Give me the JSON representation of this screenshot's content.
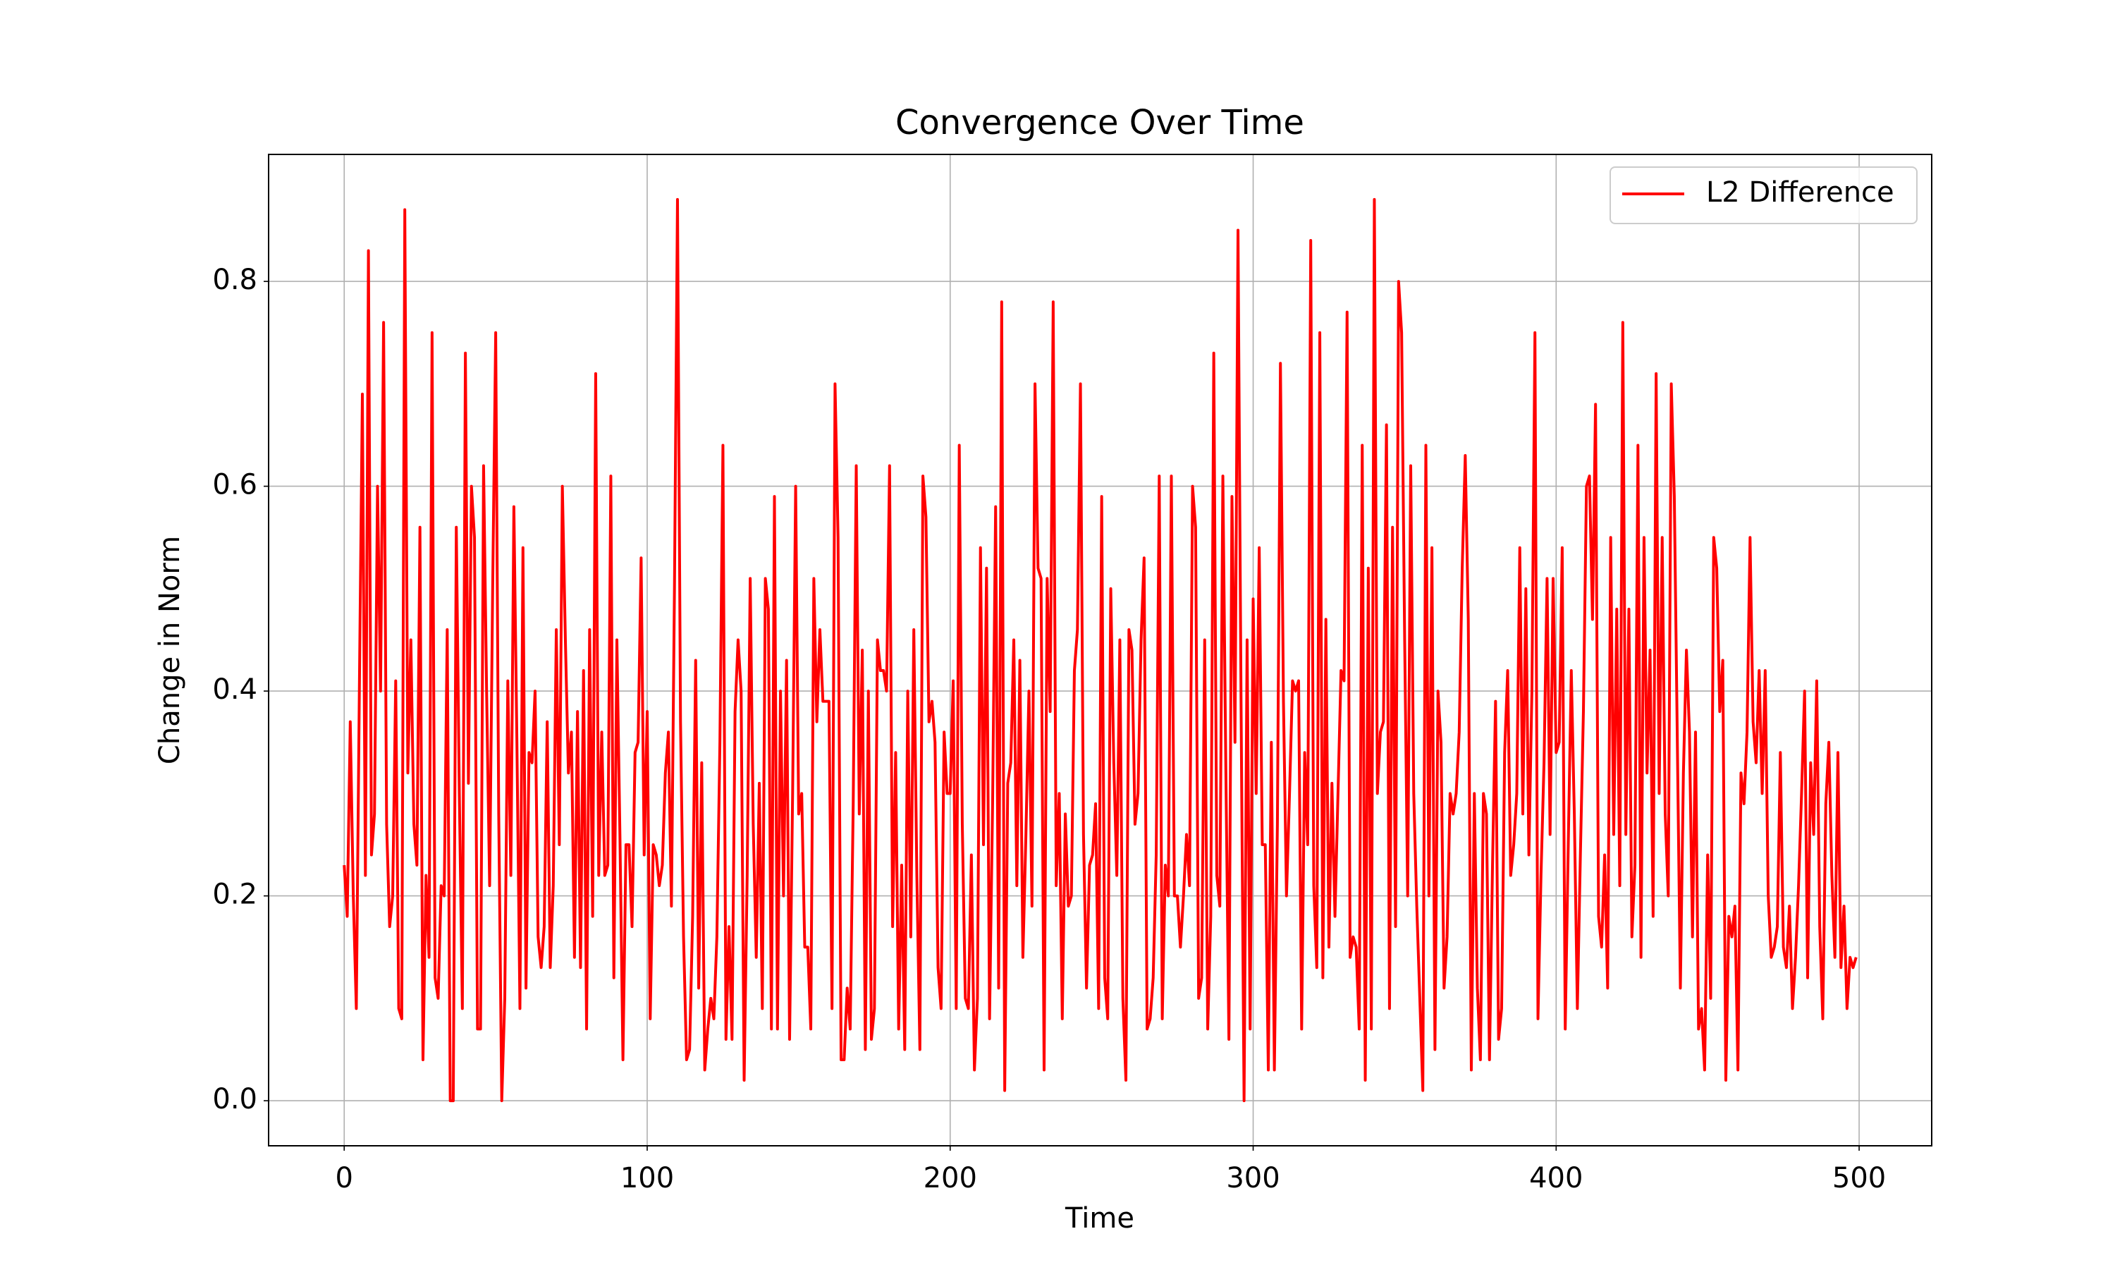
{
  "chart_data": {
    "type": "line",
    "title": "Convergence Over Time",
    "x_label": "Time",
    "y_label": "Change in Norm",
    "x": [
      0,
      1,
      2,
      3,
      4,
      5,
      6,
      7,
      8,
      9,
      10,
      11,
      12,
      13,
      14,
      15,
      16,
      17,
      18,
      19,
      20,
      21,
      22,
      23,
      24,
      25,
      26,
      27,
      28,
      29,
      30,
      31,
      32,
      33,
      34,
      35,
      36,
      37,
      38,
      39,
      40,
      41,
      42,
      43,
      44,
      45,
      46,
      47,
      48,
      49,
      50,
      51,
      52,
      53,
      54,
      55,
      56,
      57,
      58,
      59,
      60,
      61,
      62,
      63,
      64,
      65,
      66,
      67,
      68,
      69,
      70,
      71,
      72,
      73,
      74,
      75,
      76,
      77,
      78,
      79,
      80,
      81,
      82,
      83,
      84,
      85,
      86,
      87,
      88,
      89,
      90,
      91,
      92,
      93,
      94,
      95,
      96,
      97,
      98,
      99,
      100,
      101,
      102,
      103,
      104,
      105,
      106,
      107,
      108,
      109,
      110,
      111,
      112,
      113,
      114,
      115,
      116,
      117,
      118,
      119,
      120,
      121,
      122,
      123,
      124,
      125,
      126,
      127,
      128,
      129,
      130,
      131,
      132,
      133,
      134,
      135,
      136,
      137,
      138,
      139,
      140,
      141,
      142,
      143,
      144,
      145,
      146,
      147,
      148,
      149,
      150,
      151,
      152,
      153,
      154,
      155,
      156,
      157,
      158,
      159,
      160,
      161,
      162,
      163,
      164,
      165,
      166,
      167,
      168,
      169,
      170,
      171,
      172,
      173,
      174,
      175,
      176,
      177,
      178,
      179,
      180,
      181,
      182,
      183,
      184,
      185,
      186,
      187,
      188,
      189,
      190,
      191,
      192,
      193,
      194,
      195,
      196,
      197,
      198,
      199,
      200,
      201,
      202,
      203,
      204,
      205,
      206,
      207,
      208,
      209,
      210,
      211,
      212,
      213,
      214,
      215,
      216,
      217,
      218,
      219,
      220,
      221,
      222,
      223,
      224,
      225,
      226,
      227,
      228,
      229,
      230,
      231,
      232,
      233,
      234,
      235,
      236,
      237,
      238,
      239,
      240,
      241,
      242,
      243,
      244,
      245,
      246,
      247,
      248,
      249,
      250,
      251,
      252,
      253,
      254,
      255,
      256,
      257,
      258,
      259,
      260,
      261,
      262,
      263,
      264,
      265,
      266,
      267,
      268,
      269,
      270,
      271,
      272,
      273,
      274,
      275,
      276,
      277,
      278,
      279,
      280,
      281,
      282,
      283,
      284,
      285,
      286,
      287,
      288,
      289,
      290,
      291,
      292,
      293,
      294,
      295,
      296,
      297,
      298,
      299,
      300,
      301,
      302,
      303,
      304,
      305,
      306,
      307,
      308,
      309,
      310,
      311,
      312,
      313,
      314,
      315,
      316,
      317,
      318,
      319,
      320,
      321,
      322,
      323,
      324,
      325,
      326,
      327,
      328,
      329,
      330,
      331,
      332,
      333,
      334,
      335,
      336,
      337,
      338,
      339,
      340,
      341,
      342,
      343,
      344,
      345,
      346,
      347,
      348,
      349,
      350,
      351,
      352,
      353,
      354,
      355,
      356,
      357,
      358,
      359,
      360,
      361,
      362,
      363,
      364,
      365,
      366,
      367,
      368,
      369,
      370,
      371,
      372,
      373,
      374,
      375,
      376,
      377,
      378,
      379,
      380,
      381,
      382,
      383,
      384,
      385,
      386,
      387,
      388,
      389,
      390,
      391,
      392,
      393,
      394,
      395,
      396,
      397,
      398,
      399,
      400,
      401,
      402,
      403,
      404,
      405,
      406,
      407,
      408,
      409,
      410,
      411,
      412,
      413,
      414,
      415,
      416,
      417,
      418,
      419,
      420,
      421,
      422,
      423,
      424,
      425,
      426,
      427,
      428,
      429,
      430,
      431,
      432,
      433,
      434,
      435,
      436,
      437,
      438,
      439,
      440,
      441,
      442,
      443,
      444,
      445,
      446,
      447,
      448,
      449,
      450,
      451,
      452,
      453,
      454,
      455,
      456,
      457,
      458,
      459,
      460,
      461,
      462,
      463,
      464,
      465,
      466,
      467,
      468,
      469,
      470,
      471,
      472,
      473,
      474,
      475,
      476,
      477,
      478,
      479,
      480,
      481,
      482,
      483,
      484,
      485,
      486,
      487,
      488,
      489,
      490,
      491,
      492,
      493,
      494,
      495,
      496,
      497,
      498,
      499
    ],
    "series": [
      {
        "name": "L2 Difference",
        "color": "#ff0000",
        "values": [
          0.23,
          0.18,
          0.37,
          0.2,
          0.09,
          0.4,
          0.69,
          0.22,
          0.83,
          0.24,
          0.28,
          0.6,
          0.4,
          0.76,
          0.27,
          0.17,
          0.2,
          0.41,
          0.09,
          0.08,
          0.87,
          0.32,
          0.45,
          0.27,
          0.23,
          0.56,
          0.04,
          0.22,
          0.14,
          0.75,
          0.12,
          0.1,
          0.21,
          0.2,
          0.46,
          0.0,
          0.0,
          0.56,
          0.3,
          0.09,
          0.73,
          0.31,
          0.6,
          0.55,
          0.07,
          0.07,
          0.62,
          0.4,
          0.21,
          0.5,
          0.75,
          0.28,
          0.0,
          0.1,
          0.41,
          0.22,
          0.58,
          0.35,
          0.09,
          0.54,
          0.11,
          0.34,
          0.33,
          0.4,
          0.16,
          0.13,
          0.17,
          0.37,
          0.13,
          0.21,
          0.46,
          0.25,
          0.6,
          0.45,
          0.32,
          0.36,
          0.14,
          0.38,
          0.13,
          0.42,
          0.07,
          0.46,
          0.18,
          0.71,
          0.22,
          0.36,
          0.22,
          0.23,
          0.61,
          0.12,
          0.45,
          0.26,
          0.04,
          0.25,
          0.25,
          0.17,
          0.34,
          0.35,
          0.53,
          0.24,
          0.38,
          0.08,
          0.25,
          0.24,
          0.21,
          0.23,
          0.32,
          0.36,
          0.19,
          0.5,
          0.88,
          0.37,
          0.16,
          0.04,
          0.05,
          0.18,
          0.43,
          0.11,
          0.33,
          0.03,
          0.07,
          0.1,
          0.08,
          0.16,
          0.35,
          0.64,
          0.06,
          0.17,
          0.06,
          0.38,
          0.45,
          0.4,
          0.02,
          0.22,
          0.51,
          0.27,
          0.14,
          0.31,
          0.09,
          0.51,
          0.48,
          0.07,
          0.59,
          0.07,
          0.4,
          0.2,
          0.43,
          0.06,
          0.3,
          0.6,
          0.28,
          0.3,
          0.15,
          0.15,
          0.07,
          0.51,
          0.37,
          0.46,
          0.39,
          0.39,
          0.39,
          0.09,
          0.7,
          0.55,
          0.04,
          0.04,
          0.11,
          0.07,
          0.29,
          0.62,
          0.28,
          0.44,
          0.05,
          0.4,
          0.06,
          0.09,
          0.45,
          0.42,
          0.42,
          0.4,
          0.62,
          0.17,
          0.34,
          0.07,
          0.23,
          0.05,
          0.4,
          0.16,
          0.46,
          0.22,
          0.05,
          0.61,
          0.57,
          0.37,
          0.39,
          0.35,
          0.13,
          0.09,
          0.36,
          0.3,
          0.3,
          0.41,
          0.09,
          0.64,
          0.27,
          0.1,
          0.09,
          0.24,
          0.03,
          0.1,
          0.54,
          0.25,
          0.52,
          0.08,
          0.29,
          0.58,
          0.11,
          0.78,
          0.01,
          0.31,
          0.33,
          0.45,
          0.21,
          0.43,
          0.14,
          0.26,
          0.4,
          0.19,
          0.7,
          0.52,
          0.51,
          0.03,
          0.51,
          0.38,
          0.78,
          0.21,
          0.3,
          0.08,
          0.28,
          0.19,
          0.2,
          0.42,
          0.46,
          0.7,
          0.26,
          0.11,
          0.23,
          0.24,
          0.29,
          0.09,
          0.59,
          0.12,
          0.08,
          0.5,
          0.33,
          0.22,
          0.45,
          0.1,
          0.02,
          0.46,
          0.44,
          0.27,
          0.3,
          0.45,
          0.53,
          0.07,
          0.08,
          0.12,
          0.24,
          0.61,
          0.08,
          0.23,
          0.2,
          0.61,
          0.2,
          0.2,
          0.15,
          0.2,
          0.26,
          0.21,
          0.6,
          0.56,
          0.1,
          0.12,
          0.45,
          0.07,
          0.18,
          0.73,
          0.22,
          0.19,
          0.61,
          0.32,
          0.06,
          0.59,
          0.35,
          0.85,
          0.39,
          0.0,
          0.45,
          0.07,
          0.49,
          0.3,
          0.54,
          0.25,
          0.25,
          0.03,
          0.35,
          0.03,
          0.27,
          0.72,
          0.39,
          0.2,
          0.3,
          0.41,
          0.4,
          0.41,
          0.07,
          0.34,
          0.25,
          0.84,
          0.21,
          0.13,
          0.75,
          0.12,
          0.47,
          0.15,
          0.31,
          0.18,
          0.3,
          0.42,
          0.41,
          0.77,
          0.14,
          0.16,
          0.15,
          0.07,
          0.64,
          0.02,
          0.52,
          0.07,
          0.88,
          0.3,
          0.36,
          0.37,
          0.66,
          0.09,
          0.56,
          0.17,
          0.8,
          0.75,
          0.45,
          0.2,
          0.62,
          0.3,
          0.19,
          0.1,
          0.01,
          0.64,
          0.2,
          0.54,
          0.05,
          0.4,
          0.35,
          0.11,
          0.16,
          0.3,
          0.28,
          0.3,
          0.36,
          0.52,
          0.63,
          0.47,
          0.03,
          0.3,
          0.11,
          0.04,
          0.3,
          0.28,
          0.04,
          0.23,
          0.39,
          0.06,
          0.09,
          0.34,
          0.42,
          0.22,
          0.25,
          0.3,
          0.54,
          0.28,
          0.5,
          0.24,
          0.4,
          0.75,
          0.08,
          0.22,
          0.33,
          0.51,
          0.26,
          0.51,
          0.34,
          0.35,
          0.54,
          0.07,
          0.25,
          0.42,
          0.28,
          0.09,
          0.24,
          0.38,
          0.6,
          0.61,
          0.47,
          0.68,
          0.18,
          0.15,
          0.24,
          0.11,
          0.55,
          0.26,
          0.48,
          0.21,
          0.76,
          0.26,
          0.48,
          0.16,
          0.23,
          0.64,
          0.14,
          0.55,
          0.32,
          0.44,
          0.18,
          0.71,
          0.3,
          0.55,
          0.28,
          0.2,
          0.7,
          0.59,
          0.35,
          0.11,
          0.32,
          0.44,
          0.36,
          0.16,
          0.36,
          0.07,
          0.09,
          0.03,
          0.24,
          0.1,
          0.55,
          0.52,
          0.38,
          0.43,
          0.02,
          0.18,
          0.16,
          0.19,
          0.03,
          0.32,
          0.29,
          0.36,
          0.55,
          0.37,
          0.33,
          0.42,
          0.3,
          0.42,
          0.2,
          0.14,
          0.15,
          0.17,
          0.34,
          0.15,
          0.13,
          0.19,
          0.09,
          0.14,
          0.21,
          0.3,
          0.4,
          0.12,
          0.33,
          0.26,
          0.41,
          0.17,
          0.08,
          0.29,
          0.35,
          0.22,
          0.14,
          0.34,
          0.13,
          0.19,
          0.09,
          0.14,
          0.13,
          0.14
        ]
      }
    ],
    "xlim": [
      -24.95,
      523.95
    ],
    "ylim": [
      -0.044,
      0.924
    ],
    "xticks": [
      0,
      100,
      200,
      300,
      400,
      500
    ],
    "yticks": [
      {
        "value": 0,
        "label": "0.0"
      },
      0.2,
      0.4,
      0.6,
      0.8
    ],
    "grid": true,
    "legend": "upper right"
  }
}
